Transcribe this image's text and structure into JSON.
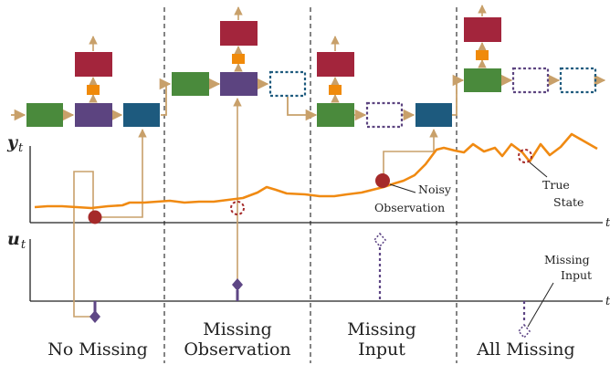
{
  "axes": {
    "observation": {
      "symbol": "y",
      "subscript": "t",
      "end_label": "t"
    },
    "input": {
      "symbol": "u",
      "subscript": "t",
      "end_label": "t"
    }
  },
  "cases": [
    {
      "label": "No Missing"
    },
    {
      "label_line1": "Missing",
      "label_line2": "Observation"
    },
    {
      "label_line1": "Missing",
      "label_line2": "Input"
    },
    {
      "label": "All Missing"
    }
  ],
  "annotations": {
    "noisy_observation": {
      "line1": "Noisy",
      "line2": "Observation"
    },
    "true_state": {
      "line1": "True",
      "line2": "State"
    },
    "missing_input": {
      "line1": "Missing",
      "line2": "Input"
    }
  },
  "colors": {
    "green_block": "#4a8a3c",
    "purple_block": "#5c4480",
    "blue_block": "#1d5a7e",
    "red_block": "#a3253c",
    "orange_connector": "#f08a0a",
    "state_curve": "#f08a12",
    "observation_dot": "#a52a2a",
    "input_marker": "#5e4685",
    "signal_line": "#c8a06a"
  }
}
